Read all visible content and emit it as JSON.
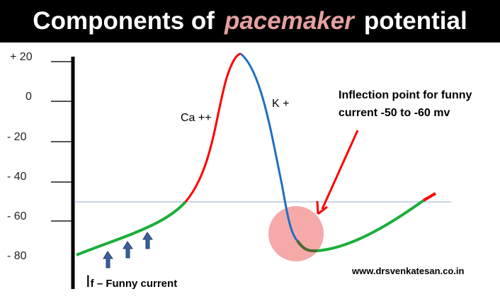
{
  "title": {
    "part1": "Components of",
    "emphasis": "pacemaker",
    "part2": "potential"
  },
  "axis": {
    "ticks": [
      "+ 20",
      "0",
      "- 20",
      "- 40",
      "- 60",
      "- 80"
    ]
  },
  "labels": {
    "calcium": "Ca ++",
    "potassium": "K +",
    "inflection": "Inflection point for funny current  -50 to -60 mv",
    "funny_I": "I",
    "funny_rest": "f – Funny  current",
    "website": "www.drsvenkatesan.co.in"
  },
  "colors": {
    "depolarization": "#ff0000",
    "repolarization": "#1f6fc0",
    "funny_current": "#1aae3a",
    "highlight": "#f4a0a0",
    "arrows": "#3a5f9a"
  }
}
